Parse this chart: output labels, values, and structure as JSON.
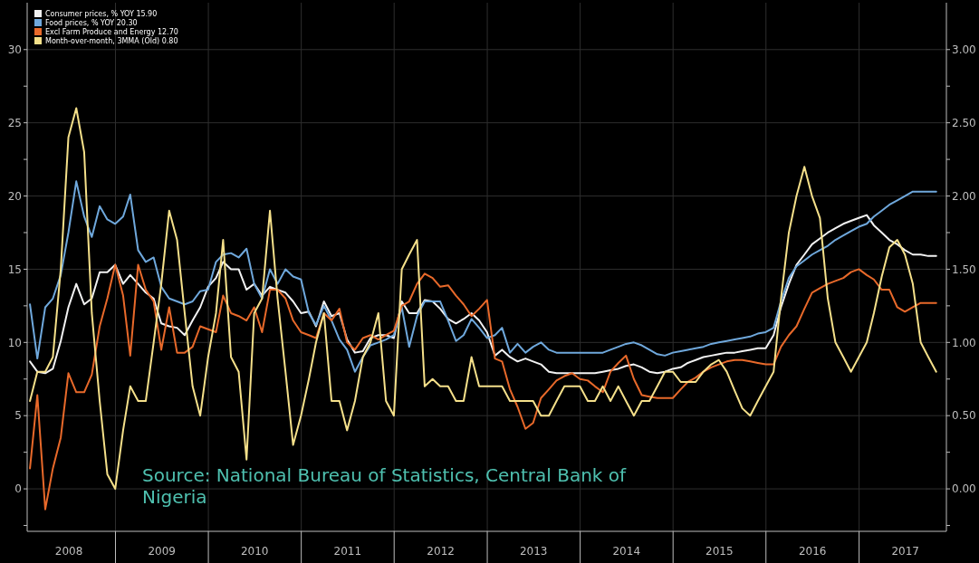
{
  "chart_data": {
    "type": "line",
    "x": [
      "2008-01-31",
      "2008-02-29",
      "2008-03-31",
      "2008-04-30",
      "2008-05-31",
      "2008-06-30",
      "2008-07-31",
      "2008-08-31",
      "2008-09-30",
      "2008-10-31",
      "2008-11-30",
      "2008-12-31",
      "2009-01-31",
      "2009-02-28",
      "2009-03-31",
      "2009-04-30",
      "2009-05-31",
      "2009-06-30",
      "2009-07-31",
      "2009-08-31",
      "2009-09-30",
      "2009-10-31",
      "2009-11-30",
      "2009-12-31",
      "2010-01-31",
      "2010-02-28",
      "2010-03-31",
      "2010-04-30",
      "2010-05-31",
      "2010-06-30",
      "2010-07-31",
      "2010-08-31",
      "2010-09-30",
      "2010-10-31",
      "2010-11-30",
      "2010-12-31",
      "2011-01-31",
      "2011-02-28",
      "2011-03-31",
      "2011-04-30",
      "2011-05-31",
      "2011-06-30",
      "2011-07-31",
      "2011-08-31",
      "2011-09-30",
      "2011-10-31",
      "2011-11-30",
      "2011-12-31",
      "2012-01-31",
      "2012-02-29",
      "2012-03-31",
      "2012-04-30",
      "2012-05-31",
      "2012-06-30",
      "2012-07-31",
      "2012-08-31",
      "2012-09-30",
      "2012-10-31",
      "2012-11-30",
      "2012-12-31",
      "2013-01-31",
      "2013-02-28",
      "2013-03-31",
      "2013-04-30",
      "2013-05-31",
      "2013-06-30",
      "2013-07-31",
      "2013-08-31",
      "2013-09-30",
      "2013-10-31",
      "2013-11-30",
      "2013-12-31",
      "2014-01-31",
      "2014-02-28",
      "2014-03-31",
      "2014-04-30",
      "2014-05-31",
      "2014-06-30",
      "2014-07-31",
      "2014-08-31",
      "2014-09-30",
      "2014-10-31",
      "2014-11-30",
      "2014-12-31",
      "2015-01-31",
      "2015-02-28",
      "2015-03-31",
      "2015-04-30",
      "2015-05-31",
      "2015-06-30",
      "2015-07-31",
      "2015-08-31",
      "2015-09-30",
      "2015-10-31",
      "2015-11-30",
      "2015-12-31",
      "2016-01-31",
      "2016-02-29",
      "2016-03-31",
      "2016-04-30",
      "2016-05-31",
      "2016-06-30",
      "2016-07-31",
      "2016-08-31",
      "2016-09-30",
      "2016-10-31",
      "2016-11-30",
      "2016-12-31",
      "2017-01-31",
      "2017-02-28",
      "2017-03-31",
      "2017-04-30",
      "2017-05-31",
      "2017-06-30",
      "2017-07-31",
      "2017-08-31",
      "2017-09-30",
      "2017-10-31"
    ],
    "series": [
      {
        "name": "Consumer prices, % YOY 15.90",
        "color": "#f2f2f2",
        "values": [
          8.7,
          8.0,
          7.9,
          8.2,
          10.1,
          12.4,
          14.0,
          12.6,
          13.0,
          14.8,
          14.8,
          15.3,
          14.0,
          14.6,
          14.0,
          13.4,
          13.0,
          11.3,
          11.1,
          11.0,
          10.5,
          11.5,
          12.4,
          13.8,
          14.4,
          15.5,
          15.0,
          15.0,
          13.6,
          14.0,
          13.2,
          13.8,
          13.6,
          13.4,
          12.8,
          12.0,
          12.1,
          11.1,
          12.8,
          11.8,
          12.0,
          10.2,
          9.3,
          9.4,
          10.3,
          10.5,
          10.5,
          10.3,
          12.8,
          12.0,
          12.0,
          12.9,
          12.8,
          12.3,
          11.6,
          11.3,
          11.6,
          12.0,
          11.5,
          10.7,
          9.1,
          9.5,
          9.0,
          8.7,
          8.9,
          8.7,
          8.5,
          8.0,
          7.9,
          7.9,
          7.9,
          7.9,
          7.9,
          7.9,
          8.0,
          8.1,
          8.2,
          8.4,
          8.5,
          8.3,
          8.0,
          7.9,
          8.0,
          8.2,
          8.3,
          8.6,
          8.8,
          9.0,
          9.1,
          9.2,
          9.3,
          9.3,
          9.4,
          9.5,
          9.6,
          9.6,
          10.5,
          12.4,
          14.0,
          15.3,
          16.0,
          16.7,
          17.1,
          17.5,
          17.8,
          18.1,
          18.3,
          18.5,
          18.7,
          18.0,
          17.5,
          17.0,
          16.7,
          16.3,
          16.0,
          16.0,
          15.9,
          15.9
        ]
      },
      {
        "name": "Food prices, % YOY 20.30",
        "color": "#6fa8dc",
        "values": [
          12.6,
          8.9,
          12.4,
          13.0,
          14.6,
          17.5,
          21.0,
          18.6,
          17.2,
          19.3,
          18.4,
          18.1,
          18.6,
          20.1,
          16.3,
          15.5,
          15.8,
          13.8,
          13.0,
          12.8,
          12.6,
          12.8,
          13.5,
          13.6,
          15.5,
          16.0,
          16.1,
          15.8,
          16.4,
          14.0,
          13.0,
          15.0,
          14.0,
          15.0,
          14.5,
          14.3,
          12.0,
          11.2,
          12.5,
          11.5,
          10.2,
          9.5,
          8.0,
          9.0,
          9.8,
          10.0,
          10.2,
          10.5,
          12.4,
          9.7,
          11.8,
          12.8,
          12.8,
          12.8,
          11.5,
          10.1,
          10.5,
          11.6,
          11.0,
          10.3,
          10.5,
          11.0,
          9.3,
          9.9,
          9.3,
          9.7,
          10.0,
          9.5,
          9.3,
          9.3,
          9.3,
          9.3,
          9.3,
          9.3,
          9.3,
          9.5,
          9.7,
          9.9,
          10.0,
          9.8,
          9.5,
          9.2,
          9.1,
          9.3,
          9.4,
          9.5,
          9.6,
          9.7,
          9.9,
          10.0,
          10.1,
          10.2,
          10.3,
          10.4,
          10.6,
          10.7,
          11.0,
          12.8,
          14.4,
          15.2,
          15.6,
          16.0,
          16.3,
          16.6,
          17.0,
          17.3,
          17.6,
          17.9,
          18.1,
          18.6,
          19.0,
          19.4,
          19.7,
          20.0,
          20.3,
          20.3,
          20.3,
          20.3
        ]
      },
      {
        "name": "Excl Farm Produce and Energy 12.70",
        "color": "#e8692a",
        "values": [
          1.4,
          6.4,
          -1.4,
          1.4,
          3.5,
          7.9,
          6.6,
          6.6,
          7.8,
          11.1,
          13.0,
          15.3,
          13.2,
          9.1,
          15.3,
          13.6,
          12.8,
          9.5,
          12.4,
          9.3,
          9.3,
          9.7,
          11.1,
          10.9,
          10.7,
          13.2,
          12.0,
          11.8,
          11.5,
          12.4,
          10.7,
          13.6,
          13.6,
          13.0,
          11.5,
          10.7,
          10.5,
          10.3,
          12.0,
          11.5,
          12.3,
          10.0,
          9.5,
          10.3,
          10.5,
          10.2,
          10.5,
          10.8,
          12.5,
          12.8,
          14.0,
          14.7,
          14.4,
          13.8,
          13.9,
          13.2,
          12.6,
          11.8,
          12.3,
          12.9,
          8.9,
          8.7,
          6.8,
          5.6,
          4.1,
          4.5,
          6.2,
          6.8,
          7.4,
          7.7,
          7.9,
          7.5,
          7.4,
          7.0,
          6.6,
          8.0,
          8.6,
          9.1,
          7.5,
          6.4,
          6.3,
          6.2,
          6.2,
          6.2,
          6.8,
          7.3,
          7.6,
          8.0,
          8.3,
          8.5,
          8.7,
          8.8,
          8.8,
          8.7,
          8.6,
          8.5,
          8.5,
          9.7,
          10.5,
          11.1,
          12.3,
          13.4,
          13.7,
          14.0,
          14.2,
          14.4,
          14.8,
          15.0,
          14.6,
          14.3,
          13.6,
          13.6,
          12.4,
          12.1,
          12.4,
          12.7,
          12.7,
          12.7
        ]
      },
      {
        "name": "Month-over-month, 3MMA (Old) 0.80",
        "color": "#f5e08a",
        "axis": "y2",
        "values": [
          0.6,
          0.8,
          0.8,
          0.9,
          1.5,
          2.4,
          2.6,
          2.3,
          1.2,
          0.6,
          0.1,
          0.0,
          0.4,
          0.7,
          0.6,
          0.6,
          1.0,
          1.4,
          1.9,
          1.7,
          1.2,
          0.7,
          0.5,
          0.9,
          1.2,
          1.7,
          0.9,
          0.8,
          0.2,
          1.2,
          1.3,
          1.9,
          1.3,
          0.8,
          0.3,
          0.5,
          0.75,
          1.0,
          1.2,
          0.6,
          0.6,
          0.4,
          0.6,
          0.9,
          1.0,
          1.2,
          0.6,
          0.5,
          1.5,
          1.6,
          1.7,
          0.7,
          0.75,
          0.7,
          0.7,
          0.6,
          0.6,
          0.9,
          0.7,
          0.7,
          0.7,
          0.7,
          0.6,
          0.6,
          0.6,
          0.6,
          0.5,
          0.5,
          0.6,
          0.7,
          0.7,
          0.7,
          0.6,
          0.6,
          0.7,
          0.6,
          0.7,
          0.6,
          0.5,
          0.6,
          0.6,
          0.7,
          0.8,
          0.8,
          0.73,
          0.73,
          0.73,
          0.8,
          0.85,
          0.88,
          0.8,
          0.67,
          0.55,
          0.5,
          0.6,
          0.7,
          0.8,
          1.3,
          1.75,
          2.0,
          2.2,
          2.0,
          1.85,
          1.3,
          1.0,
          0.9,
          0.8,
          0.9,
          1.0,
          1.2,
          1.45,
          1.65,
          1.7,
          1.6,
          1.4,
          1.0,
          0.9,
          0.8
        ]
      }
    ],
    "xlim": [
      "2008-01-20",
      "2017-12-10"
    ],
    "xticks": [
      {
        "value": "2008-07-02",
        "label": "2008"
      },
      {
        "value": "2009-01-01",
        "label": null
      },
      {
        "value": "2009-07-02",
        "label": "2009"
      },
      {
        "value": "2010-01-01",
        "label": null
      },
      {
        "value": "2010-07-02",
        "label": "2010"
      },
      {
        "value": "2011-01-01",
        "label": null
      },
      {
        "value": "2011-07-02",
        "label": "2011"
      },
      {
        "value": "2012-01-01",
        "label": null
      },
      {
        "value": "2012-07-02",
        "label": "2012"
      },
      {
        "value": "2013-01-01",
        "label": null
      },
      {
        "value": "2013-07-02",
        "label": "2013"
      },
      {
        "value": "2014-01-01",
        "label": null
      },
      {
        "value": "2014-07-02",
        "label": "2014"
      },
      {
        "value": "2015-01-01",
        "label": null
      },
      {
        "value": "2015-07-02",
        "label": "2015"
      },
      {
        "value": "2016-01-01",
        "label": null
      },
      {
        "value": "2016-07-02",
        "label": "2016"
      },
      {
        "value": "2017-01-01",
        "label": null
      },
      {
        "value": "2017-07-02",
        "label": "2017"
      }
    ],
    "ylim": [
      -2.9,
      33.2
    ],
    "yticks": [
      {
        "value": -2.5,
        "label": null
      },
      0,
      {
        "value": 2.5,
        "label": null
      },
      5,
      {
        "value": 7.5,
        "label": null
      },
      10,
      {
        "value": 12.5,
        "label": null
      },
      15,
      {
        "value": 17.5,
        "label": null
      },
      20,
      {
        "value": 22.5,
        "label": null
      },
      25,
      {
        "value": 27.5,
        "label": null
      },
      30
    ],
    "y2lim": [
      -0.29,
      3.32
    ],
    "y2ticks": [
      {
        "value": -0.25,
        "label": null
      },
      {
        "value": 0,
        "label": "0.00"
      },
      {
        "value": 0.25,
        "label": null
      },
      {
        "value": 0.5,
        "label": "0.50"
      },
      {
        "value": 0.75,
        "label": null
      },
      {
        "value": 1,
        "label": "1.00"
      },
      {
        "value": 1.25,
        "label": null
      },
      {
        "value": 1.5,
        "label": "1.50"
      },
      {
        "value": 1.75,
        "label": null
      },
      {
        "value": 2,
        "label": "2.00"
      },
      {
        "value": 2.25,
        "label": null
      },
      {
        "value": 2.5,
        "label": "2.50"
      },
      {
        "value": 2.75,
        "label": null
      },
      {
        "value": 3,
        "label": "3.00"
      }
    ],
    "grid": true,
    "legend": "top left",
    "line_style": "solid",
    "marker": "none",
    "annotations": [
      "Source: National Bureau of Statistics, Central Bank of Nigeria"
    ]
  }
}
